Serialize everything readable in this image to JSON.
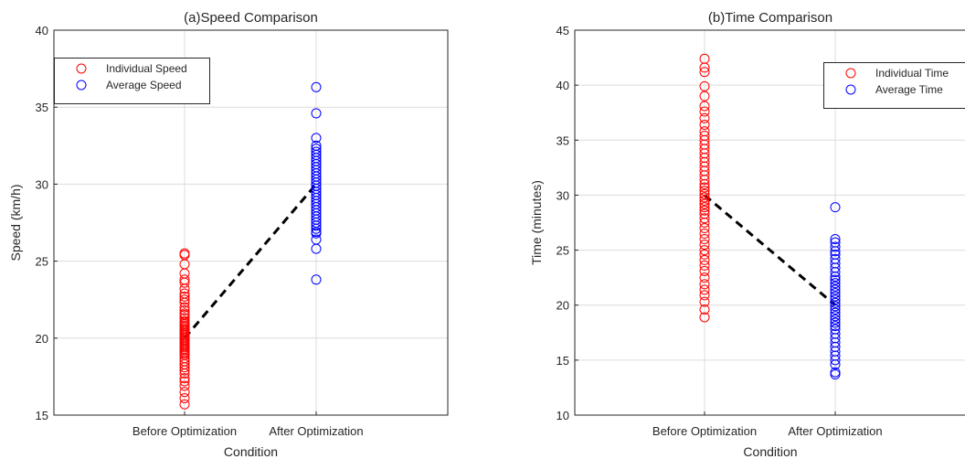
{
  "chart_data": [
    {
      "type": "scatter",
      "title": "(a)Speed Comparison",
      "xlabel": "Condition",
      "ylabel": "Speed (km/h)",
      "categories": [
        "Before Optimization",
        "After Optimization"
      ],
      "ylim": [
        15,
        40
      ],
      "yticks": [
        15,
        20,
        25,
        30,
        35,
        40
      ],
      "grid": true,
      "legend_position": "top-left",
      "series": [
        {
          "name": "Individual Speed",
          "color": "#ff0000",
          "category": "Before Optimization",
          "values": [
            25.5,
            25.4,
            24.8,
            24.2,
            23.8,
            23.6,
            23.2,
            22.9,
            22.7,
            22.5,
            22.3,
            22.0,
            21.8,
            21.6,
            21.5,
            21.3,
            21.1,
            21.0,
            20.9,
            20.8,
            20.7,
            20.6,
            20.5,
            20.4,
            20.3,
            20.2,
            20.1,
            20.0,
            19.9,
            19.8,
            19.7,
            19.6,
            19.5,
            19.4,
            19.3,
            19.2,
            19.1,
            19.0,
            18.9,
            18.7,
            18.5,
            18.3,
            18.1,
            17.9,
            17.7,
            17.4,
            17.2,
            16.9,
            16.5,
            16.1,
            15.7
          ]
        },
        {
          "name": "Average Speed",
          "color": "#0000ff",
          "category": "After Optimization",
          "values": [
            36.3,
            34.6,
            33.0,
            32.5,
            32.3,
            32.1,
            31.9,
            31.7,
            31.5,
            31.3,
            31.1,
            30.9,
            30.7,
            30.5,
            30.3,
            30.1,
            29.9,
            29.7,
            29.5,
            29.3,
            29.1,
            28.9,
            28.7,
            28.5,
            28.3,
            28.1,
            27.9,
            27.7,
            27.5,
            27.3,
            27.1,
            26.9,
            26.8,
            26.4,
            25.8,
            23.8
          ]
        }
      ],
      "trend_line": {
        "style": "dashed",
        "color": "#000000",
        "from": 20.0,
        "to": 30.0
      }
    },
    {
      "type": "scatter",
      "title": "(b)Time Comparison",
      "xlabel": "Condition",
      "ylabel": "Time (minutes)",
      "categories": [
        "Before Optimization",
        "After Optimization"
      ],
      "ylim": [
        10,
        45
      ],
      "yticks": [
        10,
        15,
        20,
        25,
        30,
        35,
        40,
        45
      ],
      "grid": true,
      "legend_position": "top-right",
      "series": [
        {
          "name": "Individual Time",
          "color": "#ff0000",
          "category": "Before Optimization",
          "values": [
            42.4,
            41.6,
            41.2,
            39.9,
            39.0,
            38.1,
            37.6,
            37.0,
            36.4,
            35.8,
            35.4,
            35.0,
            34.6,
            34.2,
            33.8,
            33.4,
            33.0,
            32.6,
            32.2,
            31.8,
            31.4,
            31.0,
            30.7,
            30.4,
            30.1,
            29.8,
            29.5,
            29.2,
            28.9,
            28.6,
            28.3,
            27.9,
            27.5,
            27.0,
            26.5,
            26.0,
            25.5,
            25.0,
            24.6,
            24.1,
            23.6,
            23.1,
            22.5,
            21.9,
            21.4,
            20.9,
            20.3,
            19.6,
            18.9
          ]
        },
        {
          "name": "Average Time",
          "color": "#0000ff",
          "category": "After Optimization",
          "values": [
            28.9,
            26.0,
            25.7,
            25.3,
            24.9,
            24.6,
            24.2,
            23.8,
            23.4,
            23.0,
            22.6,
            22.3,
            22.0,
            21.7,
            21.4,
            21.1,
            20.8,
            20.5,
            20.2,
            19.9,
            19.6,
            19.3,
            19.0,
            18.7,
            18.4,
            18.1,
            17.8,
            17.4,
            17.0,
            16.6,
            16.2,
            15.8,
            15.4,
            15.0,
            14.6,
            13.9,
            13.7
          ]
        }
      ],
      "trend_line": {
        "style": "dashed",
        "color": "#000000",
        "from": 30.0,
        "to": 20.0
      }
    }
  ]
}
